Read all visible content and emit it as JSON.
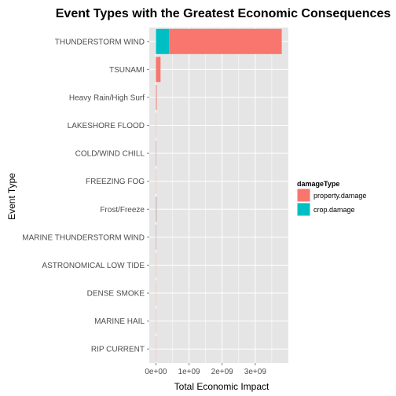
{
  "chart_data": {
    "type": "bar",
    "orientation": "horizontal",
    "stacked": true,
    "title": "Event Types with the Greatest Economic Consequences",
    "xlabel": "Total Economic Impact",
    "ylabel": "Event Type",
    "categories": [
      "THUNDERSTORM WIND",
      "TSUNAMI",
      "Heavy Rain/High Surf",
      "LAKESHORE FLOOD",
      "COLD/WIND CHILL",
      "FREEZING FOG",
      "Frost/Freeze",
      "MARINE THUNDERSTORM WIND",
      "ASTRONOMICAL LOW TIDE",
      "DENSE SMOKE",
      "MARINE HAIL",
      "RIP CURRENT"
    ],
    "series": [
      {
        "name": "property.damage",
        "color": "#F8766D",
        "values": [
          3400000000,
          140000000,
          25000000,
          7500000,
          2000000,
          2200000,
          10000,
          4900000,
          9700000,
          100000,
          4000,
          160000
        ]
      },
      {
        "name": "crop.damage",
        "color": "#00BFC4",
        "values": [
          400000000,
          20000,
          0,
          0,
          600000,
          0,
          11000000,
          50000,
          0,
          0,
          0,
          0
        ]
      }
    ],
    "x_ticks": [
      {
        "value": 0,
        "label": "0e+00"
      },
      {
        "value": 1000000000,
        "label": "1e+09"
      },
      {
        "value": 2000000000,
        "label": "2e+09"
      },
      {
        "value": 3000000000,
        "label": "3e+09"
      }
    ],
    "xlim": [
      -200000000,
      4000000000
    ],
    "legend": {
      "title": "damageType",
      "position": "right"
    },
    "grid": true,
    "panel_background": "#E5E5E5",
    "gridline_color": "#FFFFFF"
  }
}
